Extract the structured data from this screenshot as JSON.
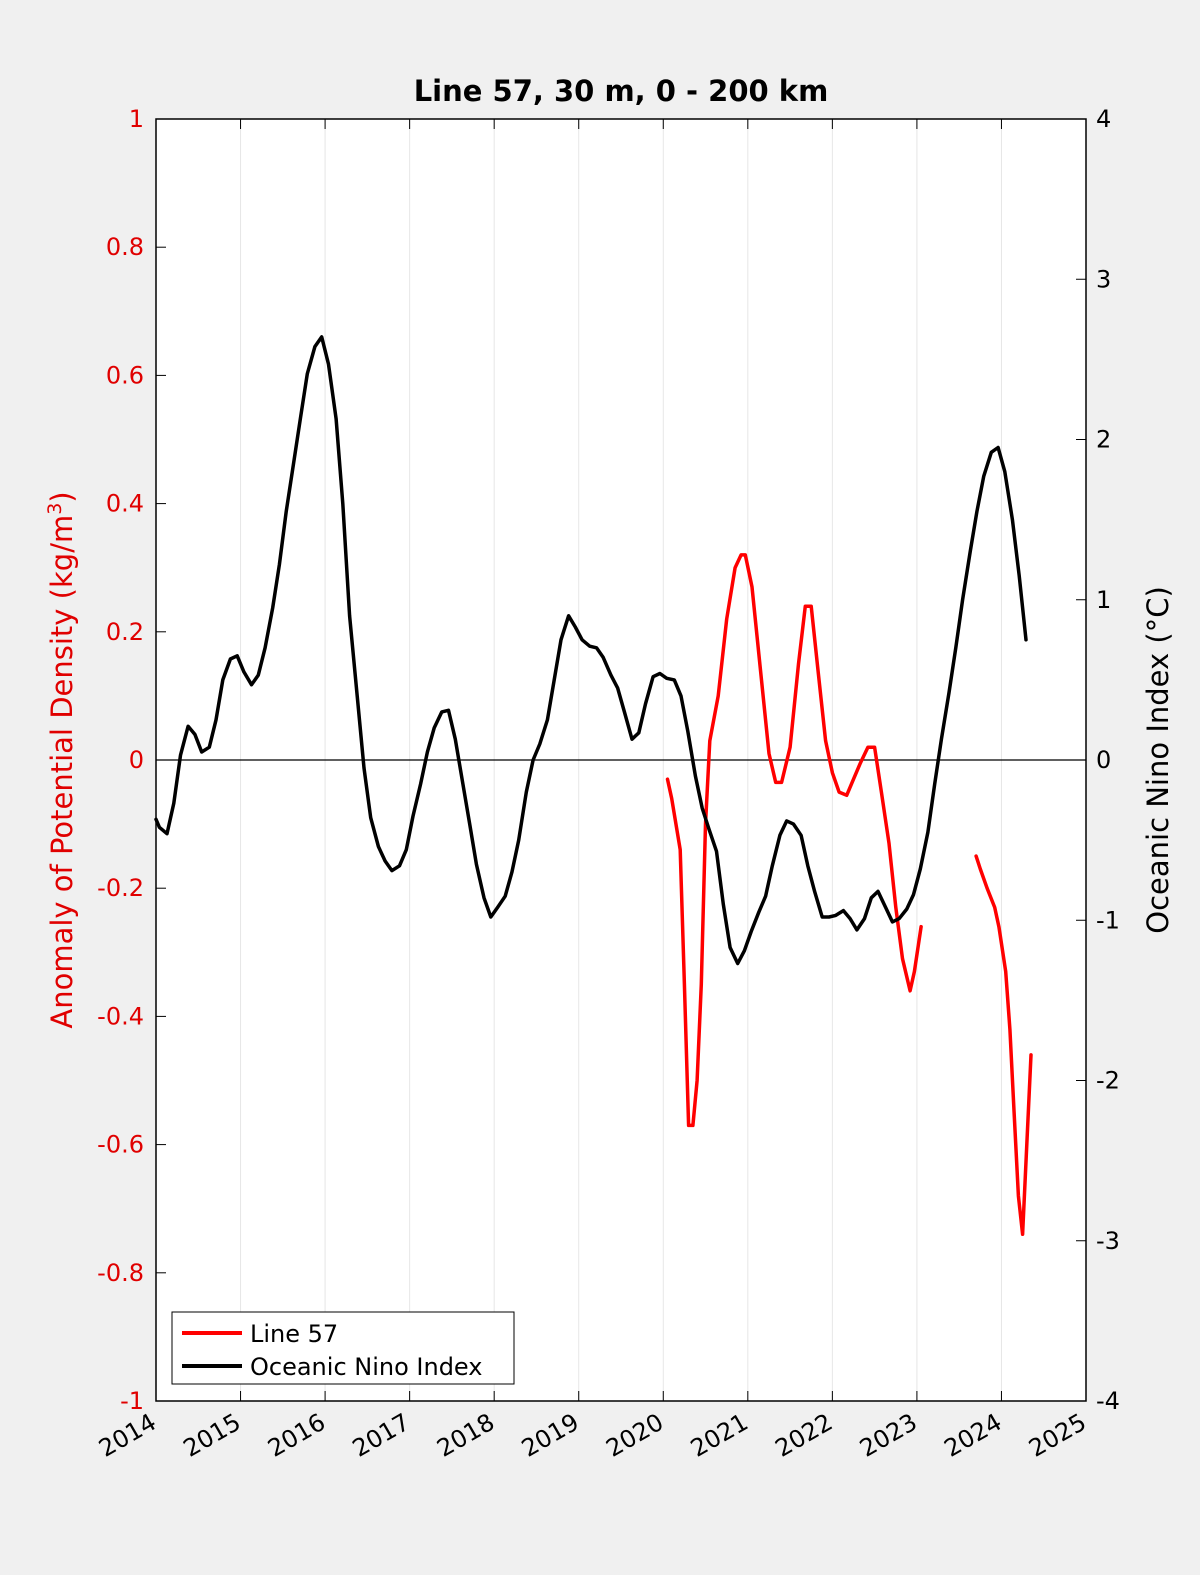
{
  "chart_data": {
    "type": "line",
    "title": "Line 57, 30 m, 0 - 200 km",
    "ylabel_left": "Anomaly of Potential Density (kg/m",
    "ylabel_left_sup": "3",
    "ylabel_left_end": ")",
    "ylabel_right": "Oceanic Nino Index (°C)",
    "xlim": [
      2014,
      2025
    ],
    "ylim_left": [
      -1,
      1
    ],
    "ylim_right": [
      -4,
      4
    ],
    "x_ticks": [
      "2014",
      "2015",
      "2016",
      "2017",
      "2018",
      "2019",
      "2020",
      "2021",
      "2022",
      "2023",
      "2024",
      "2025"
    ],
    "y_left_ticks": [
      "1",
      "0.8",
      "0.6",
      "0.4",
      "0.2",
      "0",
      "-0.2",
      "-0.4",
      "-0.6",
      "-0.8",
      "-1"
    ],
    "y_right_ticks": [
      "4",
      "3",
      "2",
      "1",
      "0",
      "-1",
      "-2",
      "-3",
      "-4"
    ],
    "grid": "vertical",
    "zero_line": true,
    "legend_position": "bottom-left",
    "colors": {
      "line57": "#ff0000",
      "oni": "#000000",
      "left_axis": "#e00000"
    },
    "series": [
      {
        "name": "Line 57",
        "axis": "left",
        "color": "#ff0000",
        "segments": [
          [
            [
              2020.05,
              -0.03
            ],
            [
              2020.1,
              -0.06
            ],
            [
              2020.2,
              -0.14
            ],
            [
              2020.25,
              -0.35
            ],
            [
              2020.3,
              -0.57
            ],
            [
              2020.35,
              -0.57
            ],
            [
              2020.4,
              -0.5
            ],
            [
              2020.45,
              -0.35
            ],
            [
              2020.5,
              -0.1
            ],
            [
              2020.55,
              0.03
            ],
            [
              2020.65,
              0.1
            ],
            [
              2020.75,
              0.22
            ],
            [
              2020.85,
              0.3
            ],
            [
              2020.92,
              0.32
            ],
            [
              2020.97,
              0.32
            ],
            [
              2021.05,
              0.27
            ],
            [
              2021.15,
              0.14
            ],
            [
              2021.25,
              0.01
            ],
            [
              2021.33,
              -0.035
            ],
            [
              2021.4,
              -0.035
            ],
            [
              2021.5,
              0.02
            ],
            [
              2021.6,
              0.15
            ],
            [
              2021.68,
              0.24
            ],
            [
              2021.75,
              0.24
            ],
            [
              2021.83,
              0.14
            ],
            [
              2021.92,
              0.03
            ],
            [
              2022.0,
              -0.02
            ],
            [
              2022.08,
              -0.05
            ],
            [
              2022.17,
              -0.055
            ],
            [
              2022.25,
              -0.03
            ],
            [
              2022.33,
              -0.005
            ],
            [
              2022.42,
              0.02
            ],
            [
              2022.5,
              0.02
            ],
            [
              2022.58,
              -0.05
            ],
            [
              2022.67,
              -0.13
            ],
            [
              2022.75,
              -0.23
            ],
            [
              2022.83,
              -0.31
            ],
            [
              2022.92,
              -0.36
            ],
            [
              2022.97,
              -0.33
            ],
            [
              2023.05,
              -0.26
            ]
          ],
          [
            [
              2023.7,
              -0.15
            ],
            [
              2023.75,
              -0.17
            ],
            [
              2023.83,
              -0.2
            ],
            [
              2023.92,
              -0.23
            ],
            [
              2023.97,
              -0.26
            ],
            [
              2024.05,
              -0.33
            ],
            [
              2024.1,
              -0.42
            ],
            [
              2024.15,
              -0.55
            ],
            [
              2024.2,
              -0.68
            ],
            [
              2024.25,
              -0.74
            ],
            [
              2024.3,
              -0.6
            ],
            [
              2024.35,
              -0.46
            ]
          ]
        ]
      },
      {
        "name": "Oceanic Nino Index",
        "axis": "right",
        "color": "#000000",
        "segments": [
          [
            [
              2014.0,
              -0.37
            ],
            [
              2014.04,
              -0.42
            ],
            [
              2014.13,
              -0.46
            ],
            [
              2014.21,
              -0.27
            ],
            [
              2014.29,
              0.03
            ],
            [
              2014.38,
              0.21
            ],
            [
              2014.46,
              0.16
            ],
            [
              2014.54,
              0.05
            ],
            [
              2014.63,
              0.08
            ],
            [
              2014.71,
              0.25
            ],
            [
              2014.79,
              0.5
            ],
            [
              2014.88,
              0.63
            ],
            [
              2014.96,
              0.65
            ],
            [
              2015.04,
              0.55
            ],
            [
              2015.13,
              0.47
            ],
            [
              2015.21,
              0.53
            ],
            [
              2015.29,
              0.7
            ],
            [
              2015.38,
              0.95
            ],
            [
              2015.46,
              1.22
            ],
            [
              2015.54,
              1.55
            ],
            [
              2015.63,
              1.86
            ],
            [
              2015.71,
              2.14
            ],
            [
              2015.79,
              2.41
            ],
            [
              2015.88,
              2.58
            ],
            [
              2015.96,
              2.64
            ],
            [
              2016.04,
              2.47
            ],
            [
              2016.13,
              2.13
            ],
            [
              2016.21,
              1.6
            ],
            [
              2016.29,
              0.9
            ],
            [
              2016.38,
              0.4
            ],
            [
              2016.46,
              -0.05
            ],
            [
              2016.54,
              -0.36
            ],
            [
              2016.63,
              -0.54
            ],
            [
              2016.71,
              -0.63
            ],
            [
              2016.79,
              -0.69
            ],
            [
              2016.88,
              -0.66
            ],
            [
              2016.96,
              -0.56
            ],
            [
              2017.04,
              -0.35
            ],
            [
              2017.13,
              -0.15
            ],
            [
              2017.21,
              0.05
            ],
            [
              2017.29,
              0.2
            ],
            [
              2017.38,
              0.3
            ],
            [
              2017.46,
              0.31
            ],
            [
              2017.54,
              0.13
            ],
            [
              2017.63,
              -0.15
            ],
            [
              2017.71,
              -0.4
            ],
            [
              2017.79,
              -0.65
            ],
            [
              2017.88,
              -0.86
            ],
            [
              2017.96,
              -0.98
            ],
            [
              2018.04,
              -0.92
            ],
            [
              2018.13,
              -0.85
            ],
            [
              2018.21,
              -0.7
            ],
            [
              2018.29,
              -0.5
            ],
            [
              2018.38,
              -0.2
            ],
            [
              2018.46,
              0.0
            ],
            [
              2018.54,
              0.1
            ],
            [
              2018.63,
              0.25
            ],
            [
              2018.71,
              0.5
            ],
            [
              2018.79,
              0.75
            ],
            [
              2018.88,
              0.9
            ],
            [
              2018.96,
              0.83
            ],
            [
              2019.04,
              0.75
            ],
            [
              2019.13,
              0.71
            ],
            [
              2019.21,
              0.7
            ],
            [
              2019.29,
              0.64
            ],
            [
              2019.38,
              0.53
            ],
            [
              2019.46,
              0.45
            ],
            [
              2019.54,
              0.3
            ],
            [
              2019.63,
              0.13
            ],
            [
              2019.71,
              0.17
            ],
            [
              2019.79,
              0.35
            ],
            [
              2019.88,
              0.52
            ],
            [
              2019.96,
              0.54
            ],
            [
              2020.04,
              0.51
            ],
            [
              2020.13,
              0.5
            ],
            [
              2020.21,
              0.4
            ],
            [
              2020.29,
              0.18
            ],
            [
              2020.38,
              -0.1
            ],
            [
              2020.46,
              -0.3
            ],
            [
              2020.54,
              -0.43
            ],
            [
              2020.63,
              -0.57
            ],
            [
              2020.71,
              -0.9
            ],
            [
              2020.79,
              -1.17
            ],
            [
              2020.88,
              -1.27
            ],
            [
              2020.96,
              -1.19
            ],
            [
              2021.04,
              -1.07
            ],
            [
              2021.13,
              -0.95
            ],
            [
              2021.21,
              -0.85
            ],
            [
              2021.29,
              -0.66
            ],
            [
              2021.38,
              -0.47
            ],
            [
              2021.46,
              -0.38
            ],
            [
              2021.54,
              -0.4
            ],
            [
              2021.63,
              -0.47
            ],
            [
              2021.71,
              -0.66
            ],
            [
              2021.79,
              -0.82
            ],
            [
              2021.88,
              -0.98
            ],
            [
              2021.96,
              -0.98
            ],
            [
              2022.04,
              -0.97
            ],
            [
              2022.13,
              -0.94
            ],
            [
              2022.21,
              -0.99
            ],
            [
              2022.29,
              -1.06
            ],
            [
              2022.38,
              -0.99
            ],
            [
              2022.46,
              -0.86
            ],
            [
              2022.54,
              -0.82
            ],
            [
              2022.63,
              -0.92
            ],
            [
              2022.71,
              -1.01
            ],
            [
              2022.79,
              -0.99
            ],
            [
              2022.88,
              -0.93
            ],
            [
              2022.96,
              -0.84
            ],
            [
              2023.04,
              -0.68
            ],
            [
              2023.13,
              -0.45
            ],
            [
              2023.21,
              -0.15
            ],
            [
              2023.29,
              0.13
            ],
            [
              2023.38,
              0.42
            ],
            [
              2023.46,
              0.7
            ],
            [
              2023.54,
              1.0
            ],
            [
              2023.63,
              1.3
            ],
            [
              2023.71,
              1.55
            ],
            [
              2023.79,
              1.77
            ],
            [
              2023.88,
              1.92
            ],
            [
              2023.96,
              1.95
            ],
            [
              2024.04,
              1.8
            ],
            [
              2024.13,
              1.5
            ],
            [
              2024.21,
              1.15
            ],
            [
              2024.29,
              0.75
            ]
          ]
        ]
      }
    ]
  }
}
